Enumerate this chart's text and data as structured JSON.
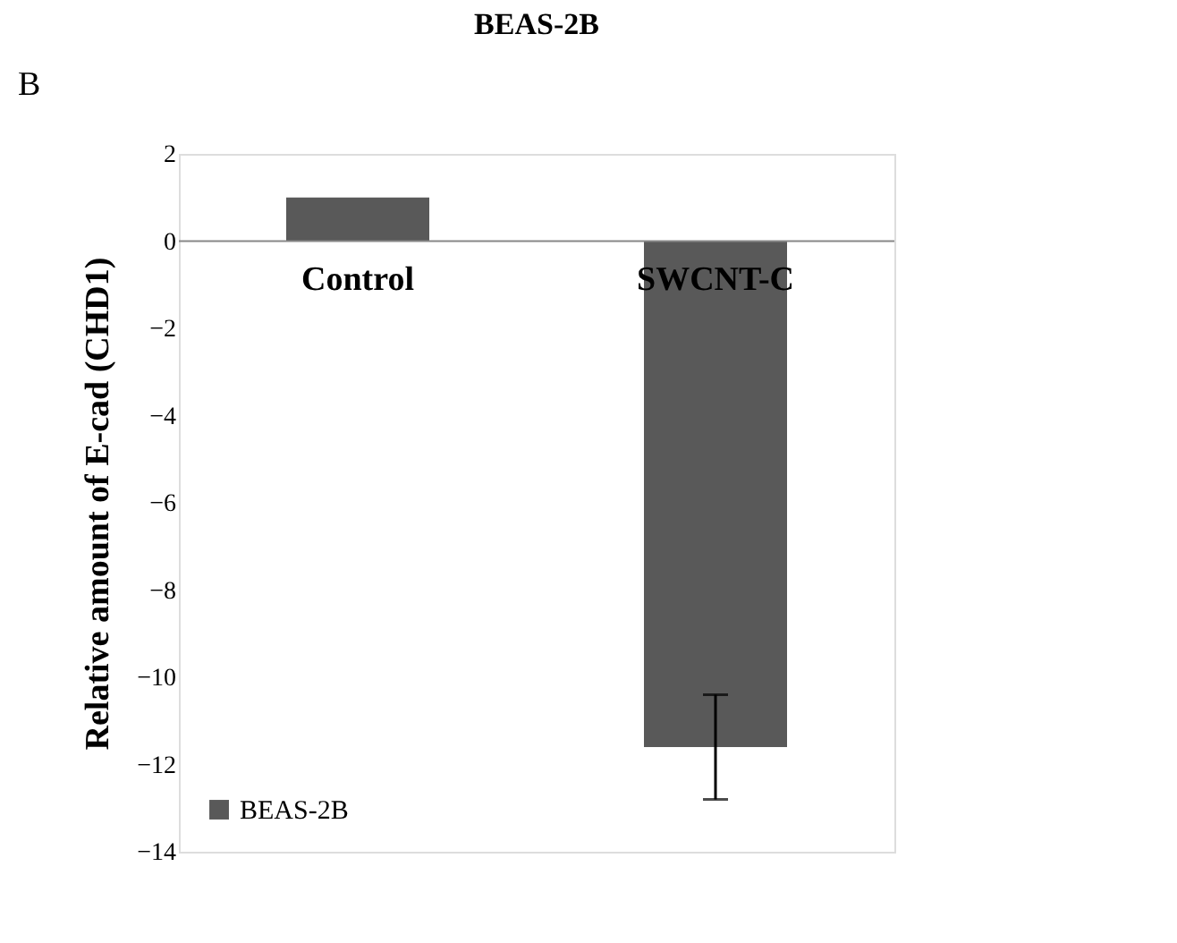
{
  "chart_data": {
    "type": "bar",
    "title": "BEAS-2B",
    "ylabel": "Relative amount of E-cad (CHD1)",
    "annotations": [
      "B"
    ],
    "categories": [
      "Control",
      "SWCNT-C"
    ],
    "series": [
      {
        "name": "BEAS-2B",
        "color": "#595959",
        "values": [
          1.0,
          -11.6
        ],
        "errors": [
          null,
          1.2
        ]
      }
    ],
    "ylim": [
      -14,
      2
    ],
    "yticks": [
      -14,
      -12,
      -10,
      -8,
      -6,
      -4,
      -2,
      0,
      2
    ],
    "grid": false,
    "legend": "bottom left"
  }
}
